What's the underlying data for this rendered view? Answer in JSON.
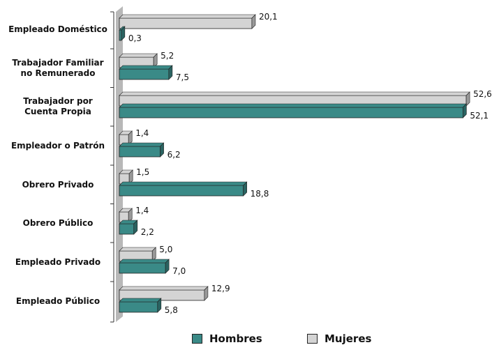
{
  "chart_data": {
    "type": "bar",
    "orientation": "horizontal",
    "categories": [
      [
        "Empleado Doméstico"
      ],
      [
        "Trabajador Familiar",
        "no Remunerado"
      ],
      [
        "Trabajador por",
        "Cuenta Propia"
      ],
      [
        "Empleador o Patrón"
      ],
      [
        "Obrero Privado"
      ],
      [
        "Obrero Público"
      ],
      [
        "Empleado Privado"
      ],
      [
        "Empleado Público"
      ]
    ],
    "series": [
      {
        "name": "Mujeres",
        "values": [
          20.1,
          5.2,
          52.6,
          1.4,
          1.5,
          1.4,
          5.0,
          12.9
        ],
        "labels": [
          "20,1",
          "5,2",
          "52,6",
          "1,4",
          "1,5",
          "1,4",
          "5,0",
          "12,9"
        ],
        "color": "#d4d4d4"
      },
      {
        "name": "Hombres",
        "values": [
          0.3,
          7.5,
          52.1,
          6.2,
          18.8,
          2.2,
          7.0,
          5.8
        ],
        "labels": [
          "0,3",
          "7,5",
          "52,1",
          "6,2",
          "18,8",
          "2,2",
          "7,0",
          "5,8"
        ],
        "color": "#3a8a87"
      }
    ],
    "xlim": [
      0,
      55
    ],
    "grid": false,
    "legend_position": "bottom",
    "title": "",
    "xlabel": "",
    "ylabel": ""
  },
  "legend": [
    {
      "label": "Hombres",
      "color": "#3a8a87"
    },
    {
      "label": "Mujeres",
      "color": "#d4d4d4"
    }
  ]
}
